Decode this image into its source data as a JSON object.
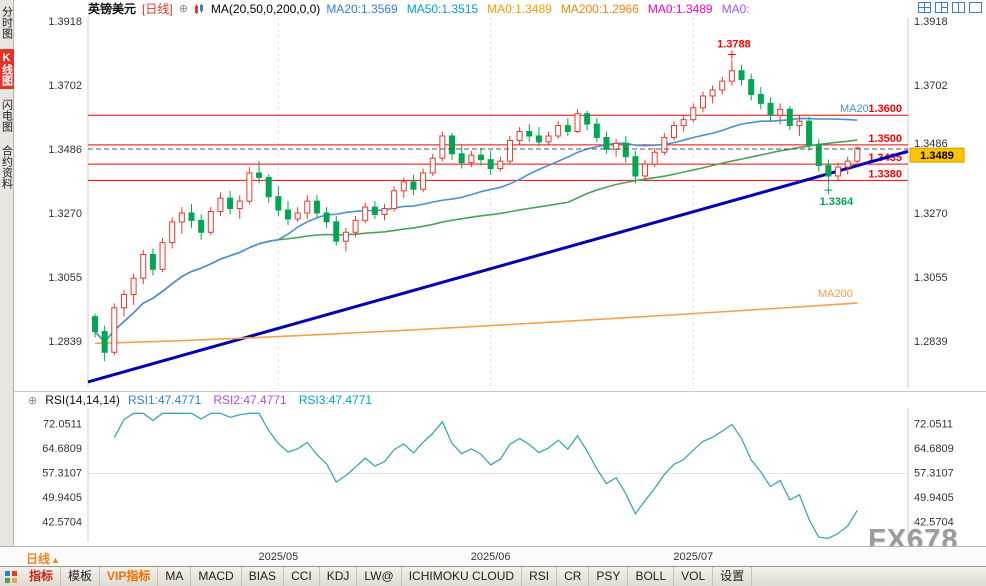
{
  "colors": {
    "up": "#e8392b",
    "down": "#00a651",
    "ma20": "#4a8fd3",
    "ma50": "#4aa35a",
    "ma200": "#f5a04a",
    "trend": "#0000b4",
    "level": "#ff0000",
    "rsi_line": "#3aa6b9",
    "last_price_bg": "#ffc400"
  },
  "sidebar": {
    "tabs": [
      {
        "label": "分时图",
        "active": false
      },
      {
        "label": "K线图",
        "active": true
      },
      {
        "label": "闪电图",
        "active": false
      },
      {
        "label": "合约资料",
        "active": false
      }
    ]
  },
  "header": {
    "symbol": "英镑美元",
    "period": "[日线]",
    "crosshair_icon": "⊕",
    "ma_title": "MA(20,50,0,200,0,0)",
    "ma_values": [
      {
        "text": "MA20:1.3569",
        "color": "#2f7ed8"
      },
      {
        "text": "MA50:1.3515",
        "color": "#00a0c6"
      },
      {
        "text": "MA0:1.3489",
        "color": "#ff9900"
      },
      {
        "text": "MA200:1.2966",
        "color": "#f5820b"
      },
      {
        "text": "MA0:1.3489",
        "color": "#ff00cc"
      },
      {
        "text": "MA0:",
        "color": "#9b59ff"
      }
    ],
    "layout_icons": [
      "layout-grid-2x2",
      "layout-three-pane",
      "layout-split-vertical",
      "layout-single-pane"
    ]
  },
  "main_chart": {
    "y_axis_labels": [
      "1.3918",
      "1.3702",
      "1.3486",
      "1.3270",
      "1.3055",
      "1.2839"
    ],
    "y_axis_top_price": 1.3918,
    "y_axis_step": 0.0216,
    "levels": [
      {
        "price": 1.36,
        "label": "1.3600"
      },
      {
        "price": 1.35,
        "label": "1.3500"
      },
      {
        "price": 1.3435,
        "label": "1.3435"
      },
      {
        "price": 1.338,
        "label": "1.3380"
      }
    ],
    "dashed_price": {
      "price": 1.3486,
      "label": "1.3486"
    },
    "last_price": {
      "price": 1.3489,
      "label": "1.3489"
    },
    "high_annotation": {
      "index": 66,
      "price": 1.3788,
      "label": "1.3788"
    },
    "low_annotation": {
      "index": 76,
      "price": 1.3364,
      "label": "1.3364"
    },
    "ma20_label": "MA20",
    "ma200_label": "MA200",
    "trendline": {
      "start_price": 1.27,
      "end_price": 1.3478
    },
    "ma200_series": {
      "start": 1.283,
      "end": 1.2966
    }
  },
  "chart_data": {
    "type": "candlestick",
    "symbol": "英镑美元 (GBP/USD)",
    "timeframe": "日线 (daily)",
    "x_gridline_dates": [
      {
        "label": "2025/05",
        "index": 19
      },
      {
        "label": "2025/06",
        "index": 41
      },
      {
        "label": "2025/07",
        "index": 62
      }
    ],
    "overlays": {
      "ma20_period": 20,
      "ma50_period": 50
    },
    "rsi_period": 14,
    "ohlc": [
      [
        1.292,
        1.293,
        1.285,
        1.287
      ],
      [
        1.287,
        1.289,
        1.277,
        1.28
      ],
      [
        1.28,
        1.2965,
        1.279,
        1.295
      ],
      [
        1.295,
        1.301,
        1.292,
        1.2995
      ],
      [
        1.2995,
        1.3065,
        1.296,
        1.305
      ],
      [
        1.305,
        1.3145,
        1.303,
        1.313
      ],
      [
        1.313,
        1.315,
        1.306,
        1.308
      ],
      [
        1.308,
        1.3185,
        1.307,
        1.317
      ],
      [
        1.317,
        1.3255,
        1.315,
        1.324
      ],
      [
        1.324,
        1.329,
        1.32,
        1.327
      ],
      [
        1.327,
        1.33,
        1.322,
        1.3245
      ],
      [
        1.3245,
        1.3265,
        1.318,
        1.3205
      ],
      [
        1.3205,
        1.329,
        1.3195,
        1.3275
      ],
      [
        1.3275,
        1.334,
        1.326,
        1.332
      ],
      [
        1.332,
        1.3345,
        1.3265,
        1.3285
      ],
      [
        1.3285,
        1.333,
        1.325,
        1.331
      ],
      [
        1.331,
        1.3425,
        1.33,
        1.3405
      ],
      [
        1.3405,
        1.3445,
        1.337,
        1.339
      ],
      [
        1.339,
        1.34,
        1.3305,
        1.3325
      ],
      [
        1.3325,
        1.336,
        1.326,
        1.328
      ],
      [
        1.328,
        1.331,
        1.323,
        1.325
      ],
      [
        1.325,
        1.329,
        1.324,
        1.327
      ],
      [
        1.327,
        1.333,
        1.325,
        1.331
      ],
      [
        1.331,
        1.333,
        1.3255,
        1.327
      ],
      [
        1.327,
        1.329,
        1.322,
        1.324
      ],
      [
        1.324,
        1.326,
        1.316,
        1.3175
      ],
      [
        1.3175,
        1.322,
        1.314,
        1.3205
      ],
      [
        1.3205,
        1.326,
        1.319,
        1.3245
      ],
      [
        1.3245,
        1.3305,
        1.3235,
        1.329
      ],
      [
        1.329,
        1.331,
        1.325,
        1.3265
      ],
      [
        1.3265,
        1.33,
        1.3245,
        1.3285
      ],
      [
        1.3285,
        1.336,
        1.3275,
        1.3345
      ],
      [
        1.3345,
        1.339,
        1.332,
        1.3375
      ],
      [
        1.3375,
        1.34,
        1.333,
        1.335
      ],
      [
        1.335,
        1.342,
        1.334,
        1.3405
      ],
      [
        1.3405,
        1.347,
        1.3395,
        1.3455
      ],
      [
        1.3455,
        1.3545,
        1.3445,
        1.353
      ],
      [
        1.353,
        1.354,
        1.345,
        1.347
      ],
      [
        1.347,
        1.35,
        1.342,
        1.344
      ],
      [
        1.344,
        1.348,
        1.3425,
        1.3465
      ],
      [
        1.3465,
        1.349,
        1.343,
        1.345
      ],
      [
        1.345,
        1.348,
        1.34,
        1.342
      ],
      [
        1.342,
        1.346,
        1.341,
        1.3445
      ],
      [
        1.3445,
        1.353,
        1.3435,
        1.3515
      ],
      [
        1.3515,
        1.356,
        1.35,
        1.3545
      ],
      [
        1.3545,
        1.357,
        1.351,
        1.353
      ],
      [
        1.353,
        1.356,
        1.3495,
        1.351
      ],
      [
        1.351,
        1.3545,
        1.35,
        1.353
      ],
      [
        1.353,
        1.358,
        1.352,
        1.3565
      ],
      [
        1.3565,
        1.359,
        1.353,
        1.3545
      ],
      [
        1.3545,
        1.362,
        1.354,
        1.3605
      ],
      [
        1.3605,
        1.3615,
        1.355,
        1.357
      ],
      [
        1.357,
        1.359,
        1.351,
        1.3525
      ],
      [
        1.3525,
        1.3545,
        1.347,
        1.3485
      ],
      [
        1.3485,
        1.352,
        1.346,
        1.3505
      ],
      [
        1.3505,
        1.353,
        1.344,
        1.346
      ],
      [
        1.346,
        1.348,
        1.337,
        1.3395
      ],
      [
        1.3395,
        1.345,
        1.338,
        1.3435
      ],
      [
        1.3435,
        1.349,
        1.3425,
        1.3475
      ],
      [
        1.3475,
        1.354,
        1.3465,
        1.3525
      ],
      [
        1.3525,
        1.358,
        1.3515,
        1.3565
      ],
      [
        1.3565,
        1.36,
        1.3545,
        1.3585
      ],
      [
        1.3585,
        1.364,
        1.3575,
        1.3625
      ],
      [
        1.3625,
        1.368,
        1.361,
        1.3665
      ],
      [
        1.3665,
        1.37,
        1.364,
        1.3685
      ],
      [
        1.3685,
        1.373,
        1.367,
        1.3715
      ],
      [
        1.3715,
        1.3788,
        1.37,
        1.375
      ],
      [
        1.375,
        1.377,
        1.37,
        1.372
      ],
      [
        1.372,
        1.374,
        1.365,
        1.367
      ],
      [
        1.367,
        1.3695,
        1.362,
        1.364
      ],
      [
        1.364,
        1.366,
        1.358,
        1.36
      ],
      [
        1.36,
        1.364,
        1.357,
        1.362
      ],
      [
        1.362,
        1.363,
        1.355,
        1.3565
      ],
      [
        1.3565,
        1.36,
        1.353,
        1.358
      ],
      [
        1.358,
        1.3595,
        1.348,
        1.35
      ],
      [
        1.35,
        1.352,
        1.341,
        1.343
      ],
      [
        1.343,
        1.345,
        1.3364,
        1.3395
      ],
      [
        1.3395,
        1.344,
        1.338,
        1.3425
      ],
      [
        1.3425,
        1.346,
        1.34,
        1.3445
      ],
      [
        1.3445,
        1.3495,
        1.343,
        1.3489
      ]
    ]
  },
  "rsi_panel": {
    "crosshair_icon": "⊕",
    "title": "RSI(14,14,14)",
    "values": [
      {
        "text": "RSI1:47.4771",
        "color": "#2f7ed8"
      },
      {
        "text": "RSI2:47.4771",
        "color": "#b04fd8"
      },
      {
        "text": "RSI3:47.4771",
        "color": "#00a0c6"
      }
    ],
    "y_axis_labels": [
      "72.0511",
      "64.6809",
      "57.3107",
      "49.9405",
      "42.5704"
    ]
  },
  "x_axis": {
    "period_label": "日线",
    "period_arrow": "▲"
  },
  "watermark": "FX678",
  "toolbar": {
    "items": [
      {
        "label": "指标",
        "style": "active"
      },
      {
        "label": "模板",
        "style": "normal"
      },
      {
        "label": "VIP指标",
        "style": "vip"
      },
      {
        "label": "MA",
        "style": "normal"
      },
      {
        "label": "MACD",
        "style": "normal"
      },
      {
        "label": "BIAS",
        "style": "normal"
      },
      {
        "label": "CCI",
        "style": "normal"
      },
      {
        "label": "KDJ",
        "style": "normal"
      },
      {
        "label": "LW@",
        "style": "normal"
      },
      {
        "label": "ICHIMOKU CLOUD",
        "style": "normal"
      },
      {
        "label": "RSI",
        "style": "normal"
      },
      {
        "label": "CR",
        "style": "normal"
      },
      {
        "label": "PSY",
        "style": "normal"
      },
      {
        "label": "BOLL",
        "style": "normal"
      },
      {
        "label": "VOL",
        "style": "normal"
      },
      {
        "label": "设置",
        "style": "normal"
      }
    ]
  }
}
